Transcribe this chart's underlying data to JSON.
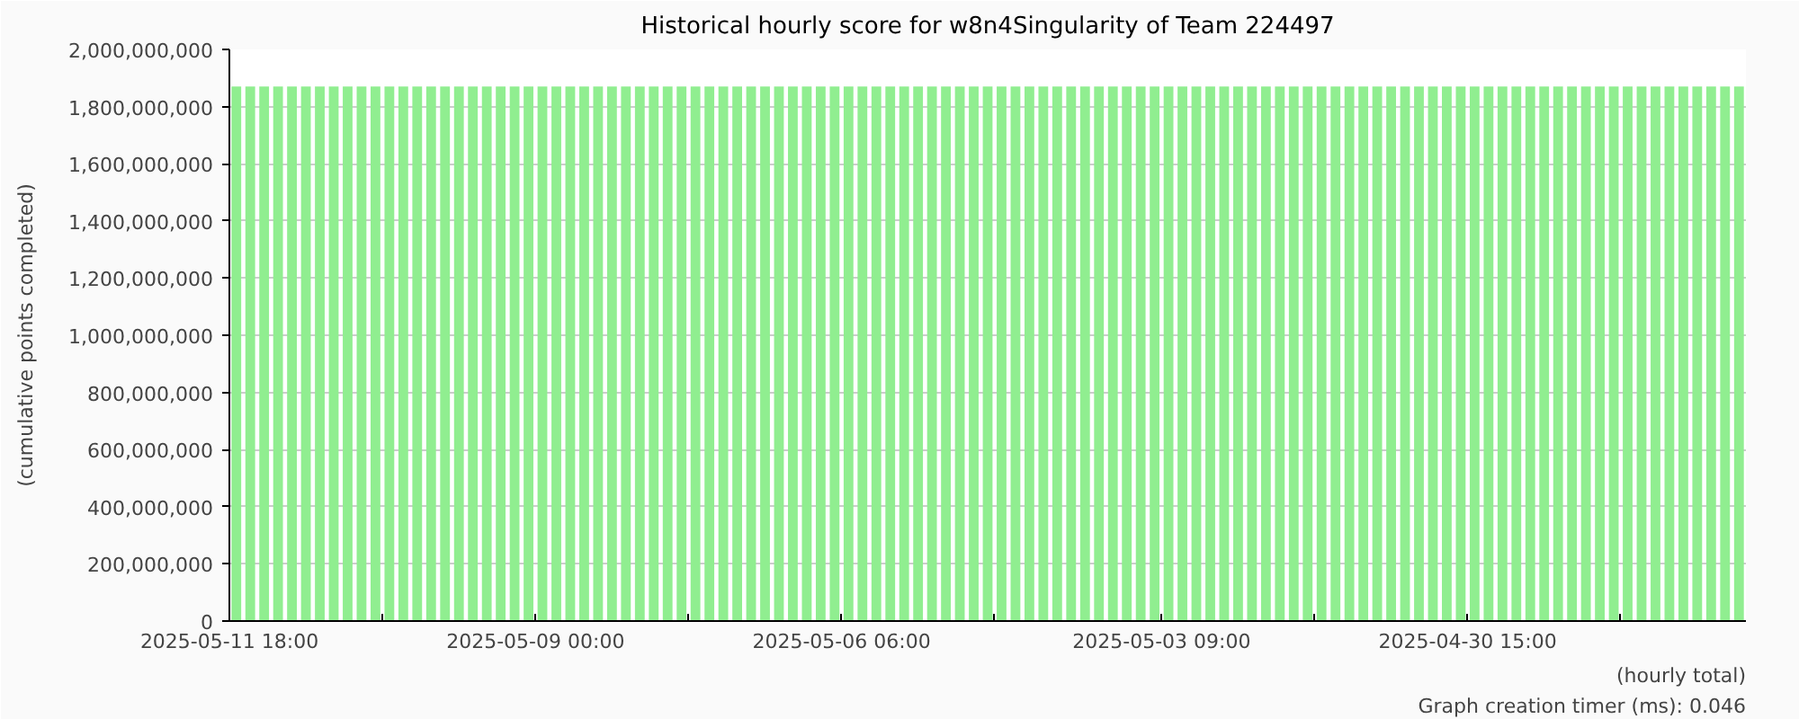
{
  "chart_data": {
    "type": "bar",
    "title": "Historical hourly score for w8n4Singularity of Team 224497",
    "ylabel": "(cumulative points completed)",
    "annotations": [
      "(hourly total)",
      "Graph creation timer (ms): 0.046"
    ],
    "x": [
      "2025-05-11T16:30",
      "2025-05-11T13:30",
      "2025-05-11T10:30",
      "2025-05-11T07:30",
      "2025-05-11T04:30",
      "2025-05-11T01:30",
      "2025-05-10T22:30",
      "2025-05-10T19:30",
      "2025-05-10T16:30",
      "2025-05-10T13:30",
      "2025-05-10T10:30",
      "2025-05-10T07:30",
      "2025-05-10T04:30",
      "2025-05-10T01:30",
      "2025-05-09T22:30",
      "2025-05-09T19:30",
      "2025-05-09T16:30",
      "2025-05-09T13:30",
      "2025-05-09T10:30",
      "2025-05-09T07:30",
      "2025-05-09T04:30",
      "2025-05-09T01:30",
      "2025-05-08T22:30",
      "2025-05-08T19:30",
      "2025-05-08T16:30",
      "2025-05-08T13:30",
      "2025-05-08T10:30",
      "2025-05-08T07:30",
      "2025-05-08T04:30",
      "2025-05-08T01:30",
      "2025-05-07T22:30",
      "2025-05-07T19:30",
      "2025-05-07T16:30",
      "2025-05-07T13:30",
      "2025-05-07T10:30",
      "2025-05-07T07:30",
      "2025-05-07T04:30",
      "2025-05-07T01:30",
      "2025-05-06T22:30",
      "2025-05-06T19:30",
      "2025-05-06T16:30",
      "2025-05-06T13:30",
      "2025-05-06T10:30",
      "2025-05-06T07:30",
      "2025-05-06T04:30",
      "2025-05-06T01:30",
      "2025-05-05T22:30",
      "2025-05-05T19:30",
      "2025-05-05T16:30",
      "2025-05-05T13:30",
      "2025-05-05T10:30",
      "2025-05-05T07:30",
      "2025-05-05T04:30",
      "2025-05-05T01:30",
      "2025-05-04T22:30",
      "2025-05-04T19:30",
      "2025-05-04T16:30",
      "2025-05-04T13:30",
      "2025-05-04T10:30",
      "2025-05-04T07:30",
      "2025-05-04T04:30",
      "2025-05-04T01:30",
      "2025-05-03T22:30",
      "2025-05-03T19:30",
      "2025-05-03T16:30",
      "2025-05-03T13:30",
      "2025-05-03T10:30",
      "2025-05-03T07:30",
      "2025-05-03T04:30",
      "2025-05-03T01:30",
      "2025-05-02T22:30",
      "2025-05-02T19:30",
      "2025-05-02T16:30",
      "2025-05-02T13:30",
      "2025-05-02T10:30",
      "2025-05-02T07:30",
      "2025-05-02T04:30",
      "2025-05-02T01:30",
      "2025-05-01T22:30",
      "2025-05-01T19:30",
      "2025-05-01T16:30",
      "2025-05-01T13:30",
      "2025-05-01T10:30",
      "2025-05-01T07:30",
      "2025-05-01T04:30",
      "2025-05-01T01:30",
      "2025-04-30T22:30",
      "2025-04-30T19:30",
      "2025-04-30T16:30",
      "2025-04-30T13:30",
      "2025-04-30T10:30",
      "2025-04-30T07:30",
      "2025-04-30T04:30",
      "2025-04-30T01:30",
      "2025-04-29T22:30",
      "2025-04-29T19:30",
      "2025-04-29T16:30",
      "2025-04-29T13:30",
      "2025-04-29T10:30",
      "2025-04-29T07:30",
      "2025-04-29T04:30",
      "2025-04-29T01:30",
      "2025-04-28T22:30",
      "2025-04-28T19:30",
      "2025-04-28T16:30",
      "2025-04-28T13:30",
      "2025-04-28T10:30",
      "2025-04-28T07:30",
      "2025-04-28T04:30"
    ],
    "values": [
      1870000000,
      1870000000,
      1870000000,
      1870000000,
      1870000000,
      1870000000,
      1870000000,
      1870000000,
      1870000000,
      1870000000,
      1870000000,
      1870000000,
      1870000000,
      1870000000,
      1870000000,
      1870000000,
      1870000000,
      1870000000,
      1870000000,
      1870000000,
      1870000000,
      1870000000,
      1870000000,
      1870000000,
      1870000000,
      1870000000,
      1870000000,
      1870000000,
      1870000000,
      1870000000,
      1870000000,
      1870000000,
      1870000000,
      1870000000,
      1870000000,
      1870000000,
      1870000000,
      1870000000,
      1870000000,
      1870000000,
      1870000000,
      1870000000,
      1870000000,
      1870000000,
      1870000000,
      1870000000,
      1870000000,
      1870000000,
      1870000000,
      1870000000,
      1870000000,
      1870000000,
      1870000000,
      1870000000,
      1870000000,
      1870000000,
      1870000000,
      1870000000,
      1870000000,
      1870000000,
      1870000000,
      1870000000,
      1870000000,
      1870000000,
      1870000000,
      1870000000,
      1870000000,
      1870000000,
      1870000000,
      1870000000,
      1870000000,
      1870000000,
      1870000000,
      1870000000,
      1870000000,
      1870000000,
      1870000000,
      1870000000,
      1870000000,
      1870000000,
      1870000000,
      1870000000,
      1870000000,
      1870000000,
      1870000000,
      1870000000,
      1870000000,
      1870000000,
      1870000000,
      1870000000,
      1870000000,
      1870000000,
      1870000000,
      1870000000,
      1870000000,
      1870000000,
      1870000000,
      1870000000,
      1870000000,
      1870000000,
      1870000000,
      1870000000,
      1870000000,
      1870000000,
      1870000000,
      1870000000,
      1870000000,
      1870000000,
      1870000000
    ],
    "color": "#90ee90",
    "xlim": [
      "2025-05-11T18:00",
      "2025-04-28T03:00"
    ],
    "xticks": [
      {
        "value": "2025-05-11T18:00",
        "label": "2025-05-11 18:00"
      },
      {
        "value": "2025-05-10T09:00",
        "label": null
      },
      {
        "value": "2025-05-09T00:00",
        "label": "2025-05-09 00:00"
      },
      {
        "value": "2025-05-07T15:00",
        "label": null
      },
      {
        "value": "2025-05-06T06:00",
        "label": "2025-05-06 06:00"
      },
      {
        "value": "2025-05-04T21:00",
        "label": null
      },
      {
        "value": "2025-05-03T09:00",
        "label": "2025-05-03 09:00"
      },
      {
        "value": "2025-05-02T00:00",
        "label": null
      },
      {
        "value": "2025-04-30T15:00",
        "label": "2025-04-30 15:00"
      },
      {
        "value": "2025-04-29T06:00",
        "label": null
      }
    ],
    "ylim": [
      0,
      2000000000
    ],
    "yticks": [
      {
        "value": 0,
        "label": "0"
      },
      {
        "value": 200000000,
        "label": "200,000,000"
      },
      {
        "value": 400000000,
        "label": "400,000,000"
      },
      {
        "value": 600000000,
        "label": "600,000,000"
      },
      {
        "value": 800000000,
        "label": "800,000,000"
      },
      {
        "value": 1000000000,
        "label": "1,000,000,000"
      },
      {
        "value": 1200000000,
        "label": "1,200,000,000"
      },
      {
        "value": 1400000000,
        "label": "1,400,000,000"
      },
      {
        "value": 1600000000,
        "label": "1,600,000,000"
      },
      {
        "value": 1800000000,
        "label": "1,800,000,000"
      },
      {
        "value": 2000000000,
        "label": "2,000,000,000"
      }
    ],
    "grid": "y"
  }
}
